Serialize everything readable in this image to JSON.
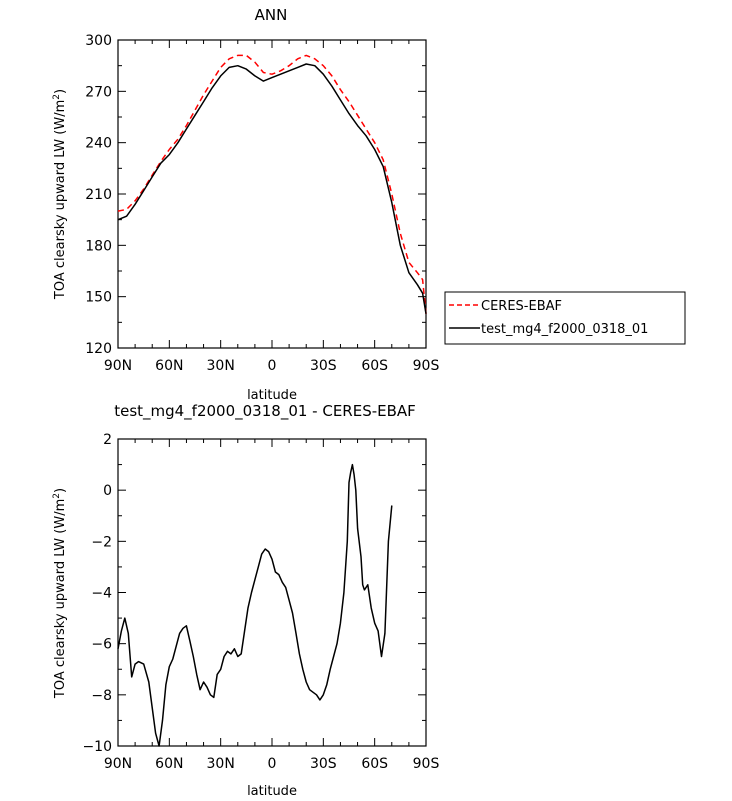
{
  "chart_data": [
    {
      "type": "line",
      "title": "ANN",
      "xlabel": "latitude",
      "ylabel": "TOA clearsky upward LW (W/m2)",
      "ylabel_parts": {
        "main": "TOA clearsky upward LW (W/m",
        "sup": "2",
        "end": ")"
      },
      "xlim": [
        90,
        -90
      ],
      "ylim": [
        120,
        300
      ],
      "xtick_values": [
        90,
        60,
        30,
        0,
        -30,
        -60,
        -90
      ],
      "xtick_labels": [
        "90N",
        "60N",
        "30N",
        "0",
        "30S",
        "60S",
        "90S"
      ],
      "ytick_values": [
        120,
        150,
        180,
        210,
        240,
        270,
        300
      ],
      "ytick_labels": [
        "120",
        "150",
        "180",
        "210",
        "240",
        "270",
        "300"
      ],
      "legend": {
        "placement": "outside-right"
      },
      "series": [
        {
          "name": "CERES-EBAF",
          "style": "dashed",
          "color": "#ff0000",
          "points": [
            [
              90,
              200
            ],
            [
              85,
              201
            ],
            [
              80,
              206
            ],
            [
              75,
              213
            ],
            [
              70,
              221
            ],
            [
              65,
              229
            ],
            [
              60,
              236
            ],
            [
              55,
              242
            ],
            [
              50,
              250
            ],
            [
              45,
              259
            ],
            [
              40,
              268
            ],
            [
              35,
              276
            ],
            [
              30,
              284
            ],
            [
              25,
              289
            ],
            [
              20,
              291
            ],
            [
              15,
              291
            ],
            [
              10,
              287
            ],
            [
              5,
              281
            ],
            [
              0,
              280
            ],
            [
              -5,
              282
            ],
            [
              -10,
              285
            ],
            [
              -15,
              289
            ],
            [
              -20,
              291
            ],
            [
              -25,
              289
            ],
            [
              -30,
              285
            ],
            [
              -35,
              279
            ],
            [
              -40,
              271
            ],
            [
              -45,
              264
            ],
            [
              -50,
              256
            ],
            [
              -55,
              248
            ],
            [
              -60,
              240
            ],
            [
              -65,
              230
            ],
            [
              -70,
              210
            ],
            [
              -75,
              187
            ],
            [
              -80,
              170
            ],
            [
              -85,
              164
            ],
            [
              -88,
              160
            ],
            [
              -90,
              140
            ]
          ]
        },
        {
          "name": "test_mg4_f2000_0318_01",
          "style": "solid",
          "color": "#000000",
          "points": [
            [
              90,
              195
            ],
            [
              85,
              197
            ],
            [
              80,
              204
            ],
            [
              75,
              212
            ],
            [
              70,
              220
            ],
            [
              65,
              228
            ],
            [
              60,
              233
            ],
            [
              55,
              240
            ],
            [
              50,
              248
            ],
            [
              45,
              256
            ],
            [
              40,
              264
            ],
            [
              35,
              272
            ],
            [
              30,
              279
            ],
            [
              25,
              284
            ],
            [
              20,
              285
            ],
            [
              15,
              283
            ],
            [
              10,
              279
            ],
            [
              5,
              276
            ],
            [
              0,
              278
            ],
            [
              -5,
              280
            ],
            [
              -10,
              282
            ],
            [
              -15,
              284
            ],
            [
              -20,
              286
            ],
            [
              -25,
              285
            ],
            [
              -30,
              280
            ],
            [
              -35,
              273
            ],
            [
              -40,
              265
            ],
            [
              -45,
              257
            ],
            [
              -50,
              250
            ],
            [
              -55,
              244
            ],
            [
              -60,
              236
            ],
            [
              -65,
              226
            ],
            [
              -70,
              205
            ],
            [
              -75,
              180
            ],
            [
              -80,
              164
            ],
            [
              -85,
              157
            ],
            [
              -88,
              152
            ],
            [
              -90,
              140
            ]
          ]
        }
      ]
    },
    {
      "type": "line",
      "title": "test_mg4_f2000_0318_01 - CERES-EBAF",
      "xlabel": "latitude",
      "ylabel": "TOA clearsky upward LW (W/m2)",
      "ylabel_parts": {
        "main": "TOA clearsky upward LW (W/m",
        "sup": "2",
        "end": ")"
      },
      "xlim": [
        90,
        -90
      ],
      "ylim": [
        -10,
        2
      ],
      "xtick_values": [
        90,
        60,
        30,
        0,
        -30,
        -60,
        -90
      ],
      "xtick_labels": [
        "90N",
        "60N",
        "30N",
        "0",
        "30S",
        "60S",
        "90S"
      ],
      "ytick_values": [
        -10,
        -8,
        -6,
        -4,
        -2,
        0,
        2
      ],
      "ytick_labels": [
        "−10",
        "−8",
        "−6",
        "−4",
        "−2",
        "0",
        "2"
      ],
      "series": [
        {
          "name": "test_mg4_f2000_0318_01 - CERES-EBAF",
          "style": "solid",
          "color": "#000000",
          "points": [
            [
              90,
              -6.2
            ],
            [
              88,
              -5.5
            ],
            [
              86,
              -5.0
            ],
            [
              84,
              -5.6
            ],
            [
              82,
              -7.3
            ],
            [
              80,
              -6.8
            ],
            [
              78,
              -6.7
            ],
            [
              75,
              -6.8
            ],
            [
              72,
              -7.5
            ],
            [
              70,
              -8.5
            ],
            [
              68,
              -9.5
            ],
            [
              66,
              -10.0
            ],
            [
              64,
              -9.0
            ],
            [
              62,
              -7.6
            ],
            [
              60,
              -6.9
            ],
            [
              58,
              -6.6
            ],
            [
              56,
              -6.1
            ],
            [
              54,
              -5.6
            ],
            [
              52,
              -5.4
            ],
            [
              50,
              -5.3
            ],
            [
              48,
              -5.9
            ],
            [
              46,
              -6.5
            ],
            [
              44,
              -7.2
            ],
            [
              42,
              -7.8
            ],
            [
              40,
              -7.5
            ],
            [
              38,
              -7.7
            ],
            [
              36,
              -8.0
            ],
            [
              34,
              -8.1
            ],
            [
              32,
              -7.2
            ],
            [
              30,
              -7.0
            ],
            [
              28,
              -6.5
            ],
            [
              26,
              -6.3
            ],
            [
              24,
              -6.4
            ],
            [
              22,
              -6.2
            ],
            [
              20,
              -6.5
            ],
            [
              18,
              -6.4
            ],
            [
              16,
              -5.5
            ],
            [
              14,
              -4.6
            ],
            [
              12,
              -4.0
            ],
            [
              10,
              -3.5
            ],
            [
              8,
              -3.0
            ],
            [
              6,
              -2.5
            ],
            [
              4,
              -2.3
            ],
            [
              2,
              -2.4
            ],
            [
              0,
              -2.7
            ],
            [
              -2,
              -3.2
            ],
            [
              -4,
              -3.3
            ],
            [
              -6,
              -3.6
            ],
            [
              -8,
              -3.8
            ],
            [
              -10,
              -4.3
            ],
            [
              -12,
              -4.8
            ],
            [
              -14,
              -5.6
            ],
            [
              -16,
              -6.4
            ],
            [
              -18,
              -7.0
            ],
            [
              -20,
              -7.5
            ],
            [
              -22,
              -7.8
            ],
            [
              -24,
              -7.9
            ],
            [
              -26,
              -8.0
            ],
            [
              -28,
              -8.2
            ],
            [
              -30,
              -8.0
            ],
            [
              -32,
              -7.6
            ],
            [
              -34,
              -7.0
            ],
            [
              -36,
              -6.5
            ],
            [
              -38,
              -6.0
            ],
            [
              -40,
              -5.2
            ],
            [
              -42,
              -4.0
            ],
            [
              -44,
              -2.0
            ],
            [
              -45,
              0.3
            ],
            [
              -46,
              0.7
            ],
            [
              -47,
              1.0
            ],
            [
              -48,
              0.6
            ],
            [
              -49,
              0.0
            ],
            [
              -50,
              -1.5
            ],
            [
              -52,
              -2.6
            ],
            [
              -53,
              -3.7
            ],
            [
              -54,
              -3.9
            ],
            [
              -56,
              -3.7
            ],
            [
              -58,
              -4.6
            ],
            [
              -60,
              -5.2
            ],
            [
              -62,
              -5.5
            ],
            [
              -64,
              -6.5
            ],
            [
              -66,
              -5.6
            ],
            [
              -68,
              -2.0
            ],
            [
              -70,
              -0.6
            ]
          ]
        }
      ]
    }
  ]
}
